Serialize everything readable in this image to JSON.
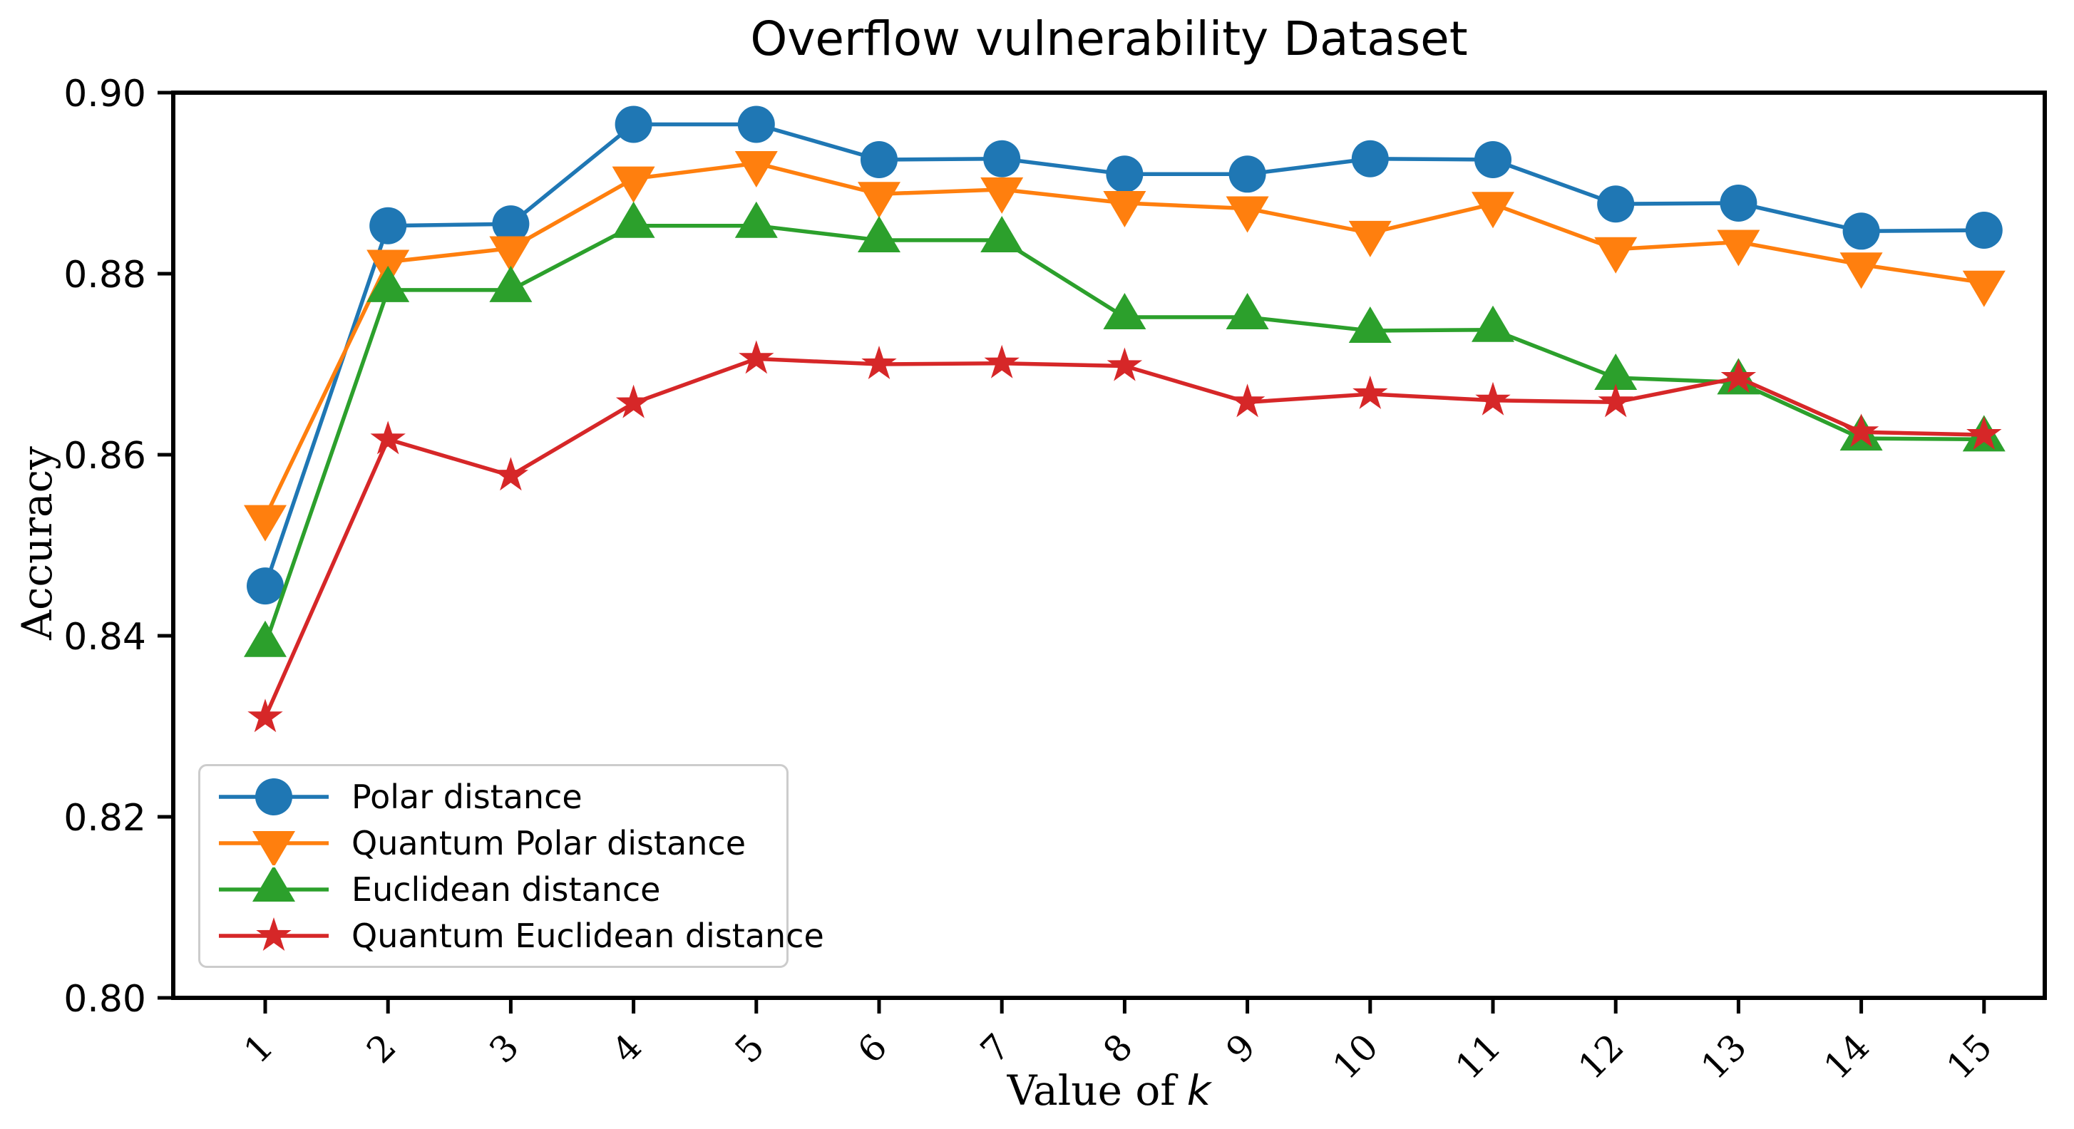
{
  "chart_data": {
    "type": "line",
    "title": "Overflow vulnerability Dataset",
    "xlabel": "Value of k",
    "xlabel_text": "Value of",
    "xlabel_math": "k",
    "ylabel": "Accuracy",
    "x": [
      1,
      2,
      3,
      4,
      5,
      6,
      7,
      8,
      9,
      10,
      11,
      12,
      13,
      14,
      15
    ],
    "x_tick_labels": [
      "1",
      "2",
      "3",
      "4",
      "5",
      "6",
      "7",
      "8",
      "9",
      "10",
      "11",
      "12",
      "13",
      "14",
      "15"
    ],
    "y_tick_labels": [
      "0.80",
      "0.82",
      "0.84",
      "0.86",
      "0.88",
      "0.90"
    ],
    "ylim": [
      0.8,
      0.9
    ],
    "grid": false,
    "legend_position": "lower left",
    "axis_color": "#000000",
    "background_color": "#ffffff",
    "series": [
      {
        "name": "Polar distance",
        "color": "#1f77b4",
        "marker": "circle",
        "values": [
          0.8455,
          0.8853,
          0.8855,
          0.8965,
          0.8965,
          0.8926,
          0.8927,
          0.891,
          0.891,
          0.8927,
          0.8926,
          0.8877,
          0.8878,
          0.8847,
          0.8848
        ]
      },
      {
        "name": "Quantum Polar distance",
        "color": "#ff7f0e",
        "marker": "triangle-down",
        "values": [
          0.8531,
          0.8813,
          0.8828,
          0.8905,
          0.8922,
          0.8888,
          0.8893,
          0.8878,
          0.8872,
          0.8845,
          0.8877,
          0.8827,
          0.8835,
          0.881,
          0.879
        ]
      },
      {
        "name": "Euclidean distance",
        "color": "#2ca02c",
        "marker": "triangle-up",
        "values": [
          0.839,
          0.8782,
          0.8782,
          0.8853,
          0.8853,
          0.8837,
          0.8837,
          0.8752,
          0.8752,
          0.8737,
          0.8738,
          0.8685,
          0.868,
          0.8618,
          0.8617
        ]
      },
      {
        "name": "Quantum Euclidean distance",
        "color": "#d62728",
        "marker": "star",
        "values": [
          0.831,
          0.8617,
          0.8577,
          0.8657,
          0.8706,
          0.87,
          0.8701,
          0.8698,
          0.8658,
          0.8667,
          0.866,
          0.8658,
          0.8685,
          0.8625,
          0.8622
        ]
      }
    ]
  }
}
